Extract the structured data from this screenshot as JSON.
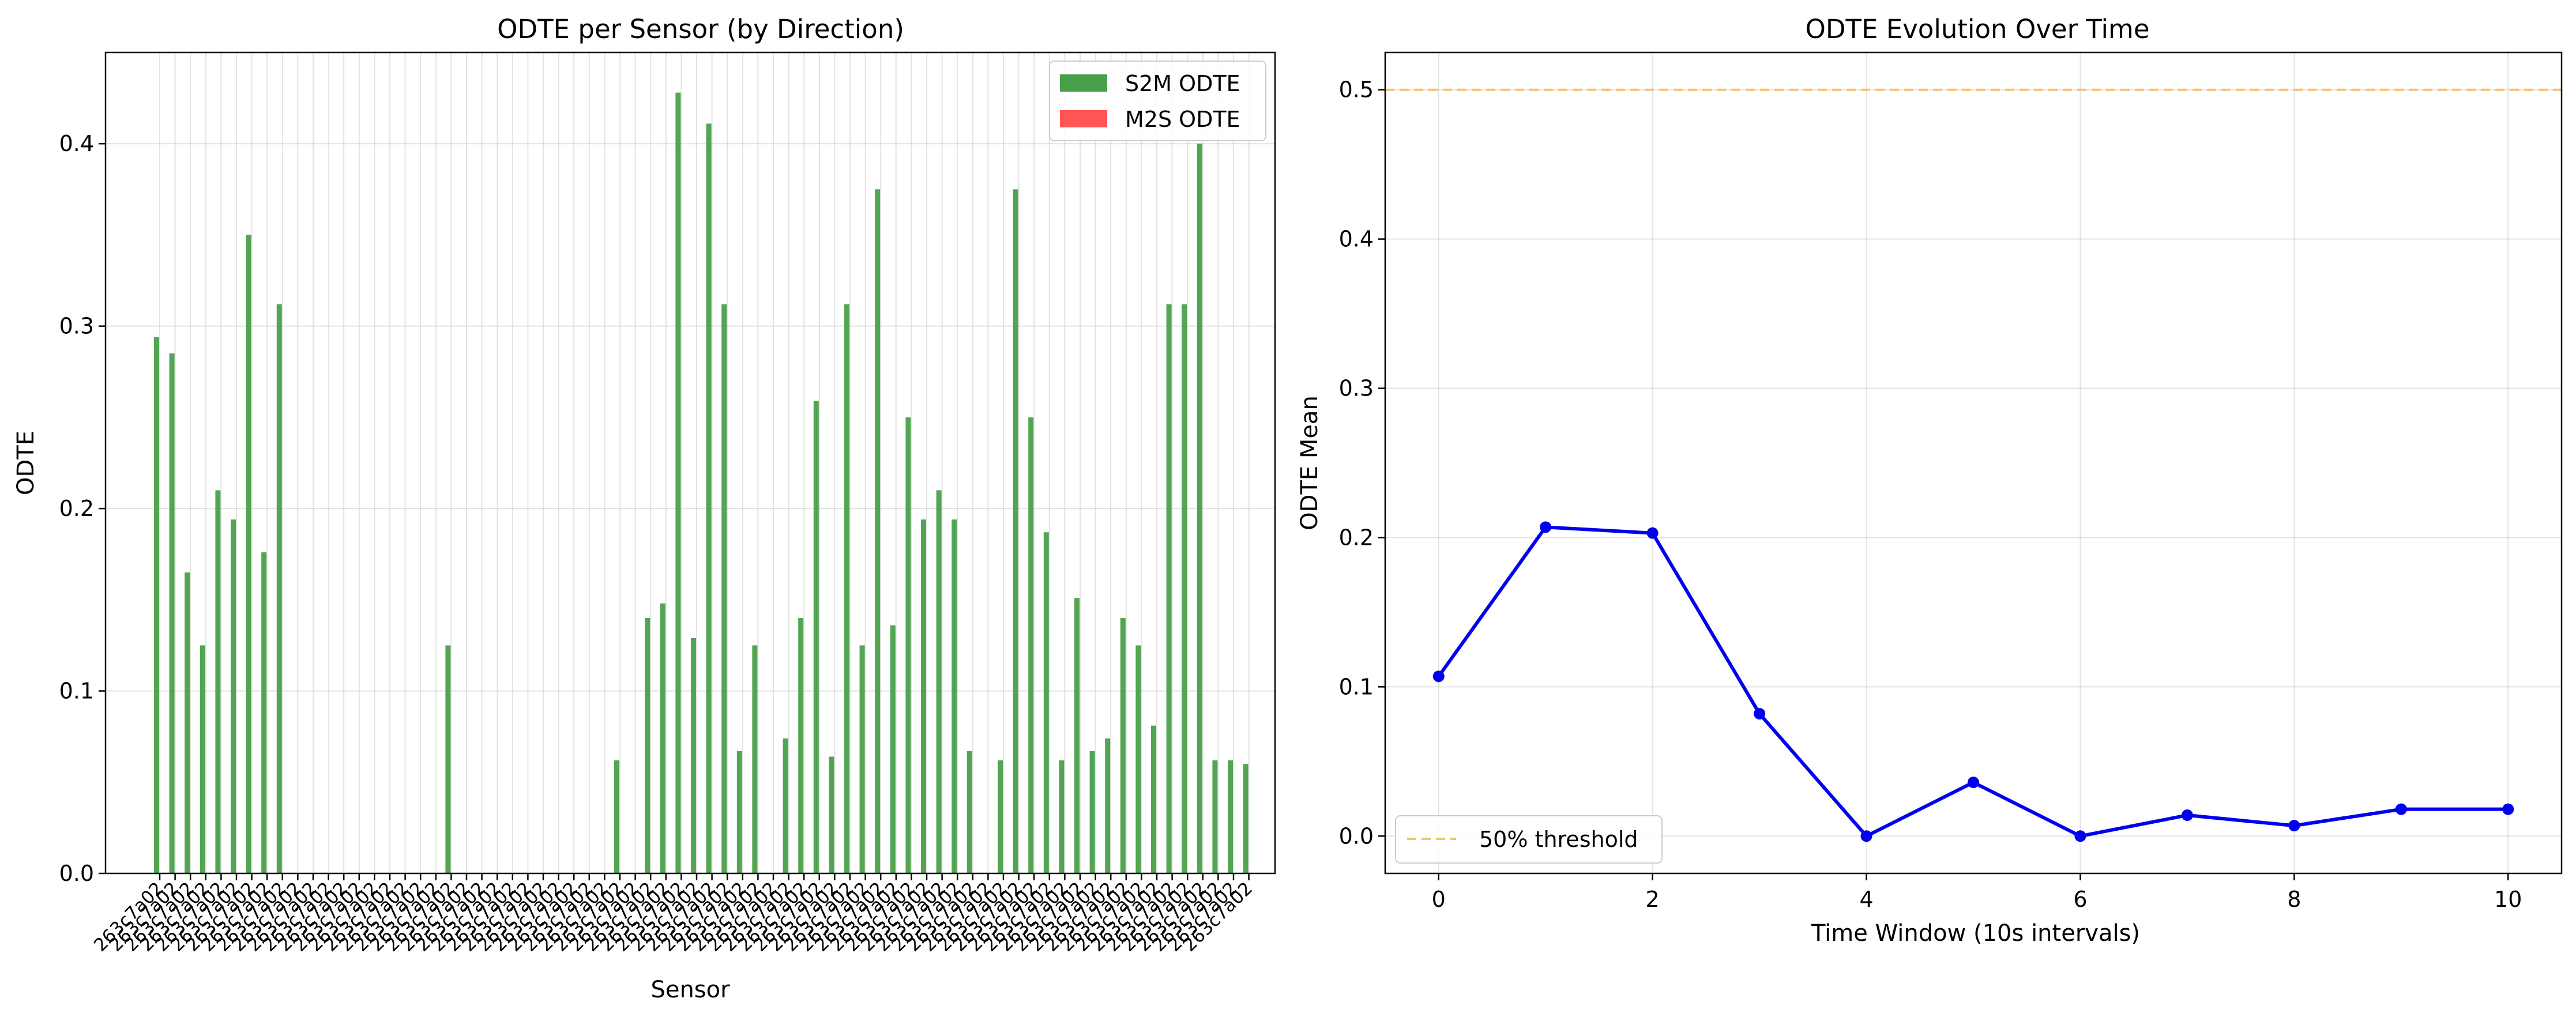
{
  "chart_data": [
    {
      "type": "bar",
      "title": "ODTE per Sensor (by Direction)",
      "xlabel": "Sensor",
      "ylabel": "ODTE",
      "ylim": [
        0,
        0.45
      ],
      "yticks": [
        "0.0",
        "0.1",
        "0.2",
        "0.3",
        "0.4"
      ],
      "grid": true,
      "legend_position": "top-right",
      "category_label_pattern": "263c7a02",
      "series": [
        {
          "name": "S2M ODTE",
          "color": "#4aa04a",
          "values": [
            0.294,
            0.285,
            0.165,
            0.125,
            0.21,
            0.194,
            0.35,
            0.176,
            0.312,
            0,
            0,
            0,
            0,
            0,
            0,
            0,
            0,
            0,
            0,
            0.125,
            0,
            0,
            0,
            0,
            0,
            0,
            0,
            0,
            0,
            0,
            0.062,
            0,
            0.14,
            0.148,
            0.428,
            0.129,
            0.411,
            0.312,
            0.067,
            0.125,
            0,
            0.074,
            0.14,
            0.259,
            0.064,
            0.312,
            0.125,
            0.375,
            0.136,
            0.25,
            0.194,
            0.21,
            0.194,
            0.067,
            0,
            0.062,
            0.375,
            0.25,
            0.187,
            0.062,
            0.151,
            0.067,
            0.074,
            0.14,
            0.125,
            0.081,
            0.312,
            0.312,
            0.4,
            0.062,
            0.062,
            0.06
          ]
        },
        {
          "name": "M2S ODTE",
          "color": "#ff5555",
          "values": [
            0,
            0,
            0,
            0,
            0,
            0,
            0,
            0,
            0,
            0,
            0,
            0,
            0,
            0,
            0,
            0,
            0,
            0,
            0,
            0,
            0,
            0,
            0,
            0,
            0,
            0,
            0,
            0,
            0,
            0,
            0,
            0,
            0,
            0,
            0,
            0,
            0,
            0,
            0,
            0,
            0,
            0,
            0,
            0,
            0,
            0,
            0,
            0,
            0,
            0,
            0,
            0,
            0,
            0,
            0,
            0,
            0,
            0,
            0,
            0,
            0,
            0,
            0,
            0,
            0,
            0,
            0,
            0,
            0,
            0,
            0,
            0
          ]
        }
      ]
    },
    {
      "type": "line",
      "title": "ODTE Evolution Over Time",
      "xlabel": "Time Window (10s intervals)",
      "ylabel": "ODTE Mean",
      "xlim": [
        -0.5,
        10.5
      ],
      "ylim": [
        -0.025,
        0.525
      ],
      "xticks": [
        "0",
        "2",
        "4",
        "6",
        "8",
        "10"
      ],
      "yticks": [
        "0.0",
        "0.1",
        "0.2",
        "0.3",
        "0.4",
        "0.5"
      ],
      "grid": true,
      "legend_position": "bottom-left",
      "series": [
        {
          "color": "#0000ee",
          "x": [
            0,
            1,
            2,
            3,
            4,
            5,
            6,
            7,
            8,
            9,
            10
          ],
          "y": [
            0.107,
            0.207,
            0.203,
            0.082,
            0.0,
            0.036,
            0.0,
            0.014,
            0.007,
            0.018,
            0.018
          ]
        }
      ],
      "reference_line": {
        "name": "50% threshold",
        "y": 0.5,
        "color": "#f5c36a"
      }
    }
  ]
}
